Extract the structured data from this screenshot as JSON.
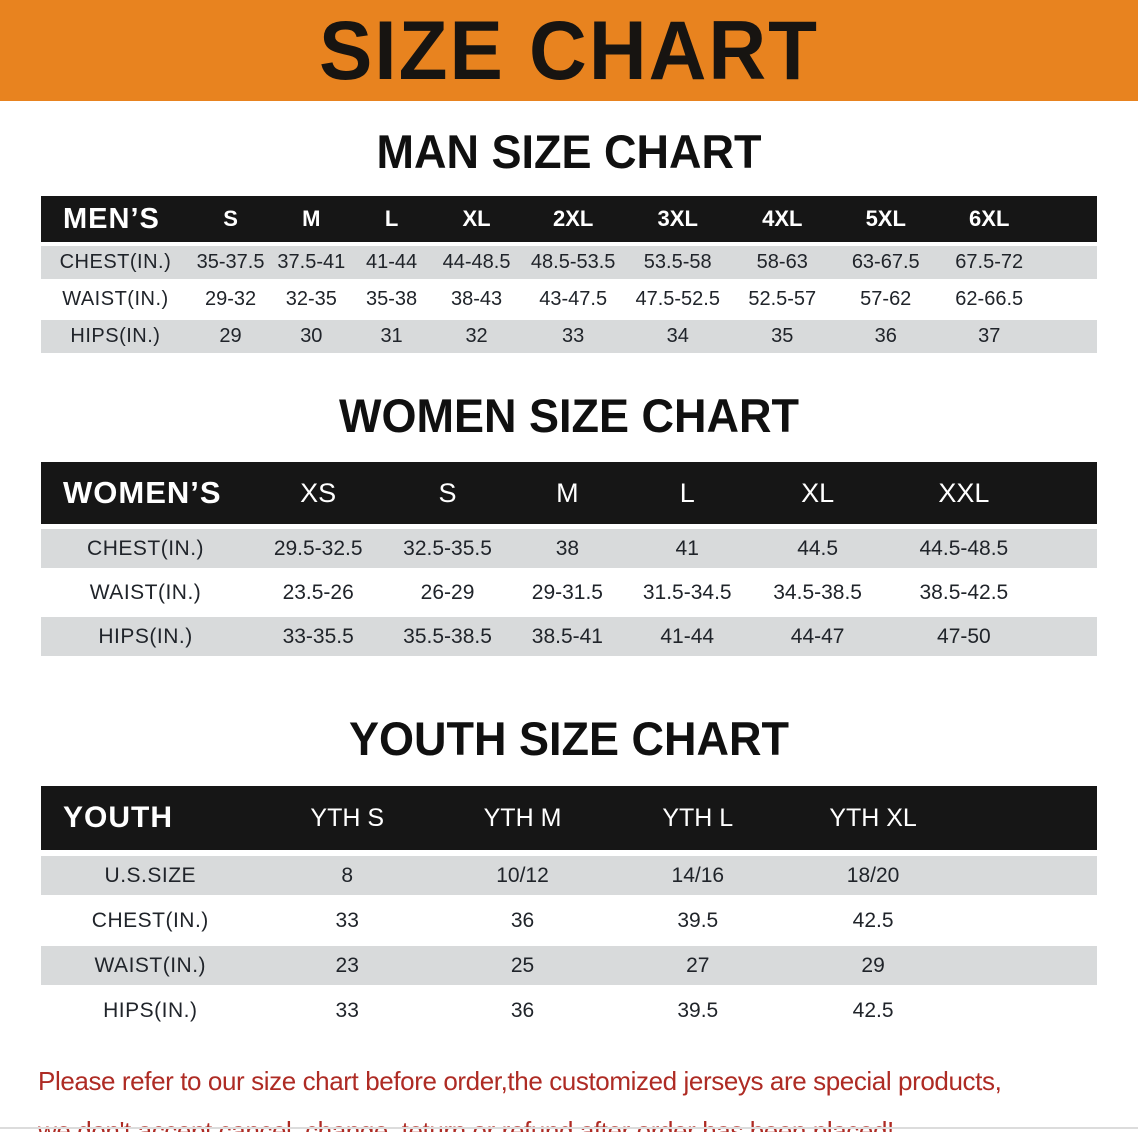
{
  "banner": {
    "title": "SIZE CHART"
  },
  "colors": {
    "banner_bg": "#E8831F",
    "header_bar": "#161616",
    "row_stripe": "#D8DADB",
    "note_color": "#AE2B24"
  },
  "sections": [
    {
      "heading": "MAN SIZE CHART",
      "corner_label": "MEN’S",
      "columns": [
        "S",
        "M",
        "L",
        "XL",
        "2XL",
        "3XL",
        "4XL",
        "5XL",
        "6XL"
      ],
      "rows": [
        {
          "label": "CHEST(IN.)",
          "values": [
            "35-37.5",
            "37.5-41",
            "41-44",
            "44-48.5",
            "48.5-53.5",
            "53.5-58",
            "58-63",
            "63-67.5",
            "67.5-72"
          ]
        },
        {
          "label": "WAIST(IN.)",
          "values": [
            "29-32",
            "32-35",
            "35-38",
            "38-43",
            "43-47.5",
            "47.5-52.5",
            "52.5-57",
            "57-62",
            "62-66.5"
          ]
        },
        {
          "label": "HIPS(IN.)",
          "values": [
            "29",
            "30",
            "31",
            "32",
            "33",
            "34",
            "35",
            "36",
            "37"
          ]
        }
      ]
    },
    {
      "heading": "WOMEN SIZE CHART",
      "corner_label": "WOMEN’S",
      "columns": [
        "XS",
        "S",
        "M",
        "L",
        "XL",
        "XXL"
      ],
      "rows": [
        {
          "label": "CHEST(IN.)",
          "values": [
            "29.5-32.5",
            "32.5-35.5",
            "38",
            "41",
            "44.5",
            "44.5-48.5"
          ]
        },
        {
          "label": "WAIST(IN.)",
          "values": [
            "23.5-26",
            "26-29",
            "29-31.5",
            "31.5-34.5",
            "34.5-38.5",
            "38.5-42.5"
          ]
        },
        {
          "label": "HIPS(IN.)",
          "values": [
            "33-35.5",
            "35.5-38.5",
            "38.5-41",
            "41-44",
            "44-47",
            "47-50"
          ]
        }
      ]
    },
    {
      "heading": "YOUTH SIZE CHART",
      "corner_label": "YOUTH",
      "columns": [
        "YTH S",
        "YTH M",
        "YTH L",
        "YTH XL"
      ],
      "rows": [
        {
          "label": "U.S.SIZE",
          "values": [
            "8",
            "10/12",
            "14/16",
            "18/20"
          ]
        },
        {
          "label": "CHEST(IN.)",
          "values": [
            "33",
            "36",
            "39.5",
            "42.5"
          ]
        },
        {
          "label": "WAIST(IN.)",
          "values": [
            "23",
            "25",
            "27",
            "29"
          ]
        },
        {
          "label": "HIPS(IN.)",
          "values": [
            "33",
            "36",
            "39.5",
            "42.5"
          ]
        }
      ]
    }
  ],
  "footer": {
    "line1": "Please refer to our size chart before order,the customized jerseys are special products,",
    "line2": "we don't accept cancel, change, teturn or refund after order has been placed!"
  }
}
